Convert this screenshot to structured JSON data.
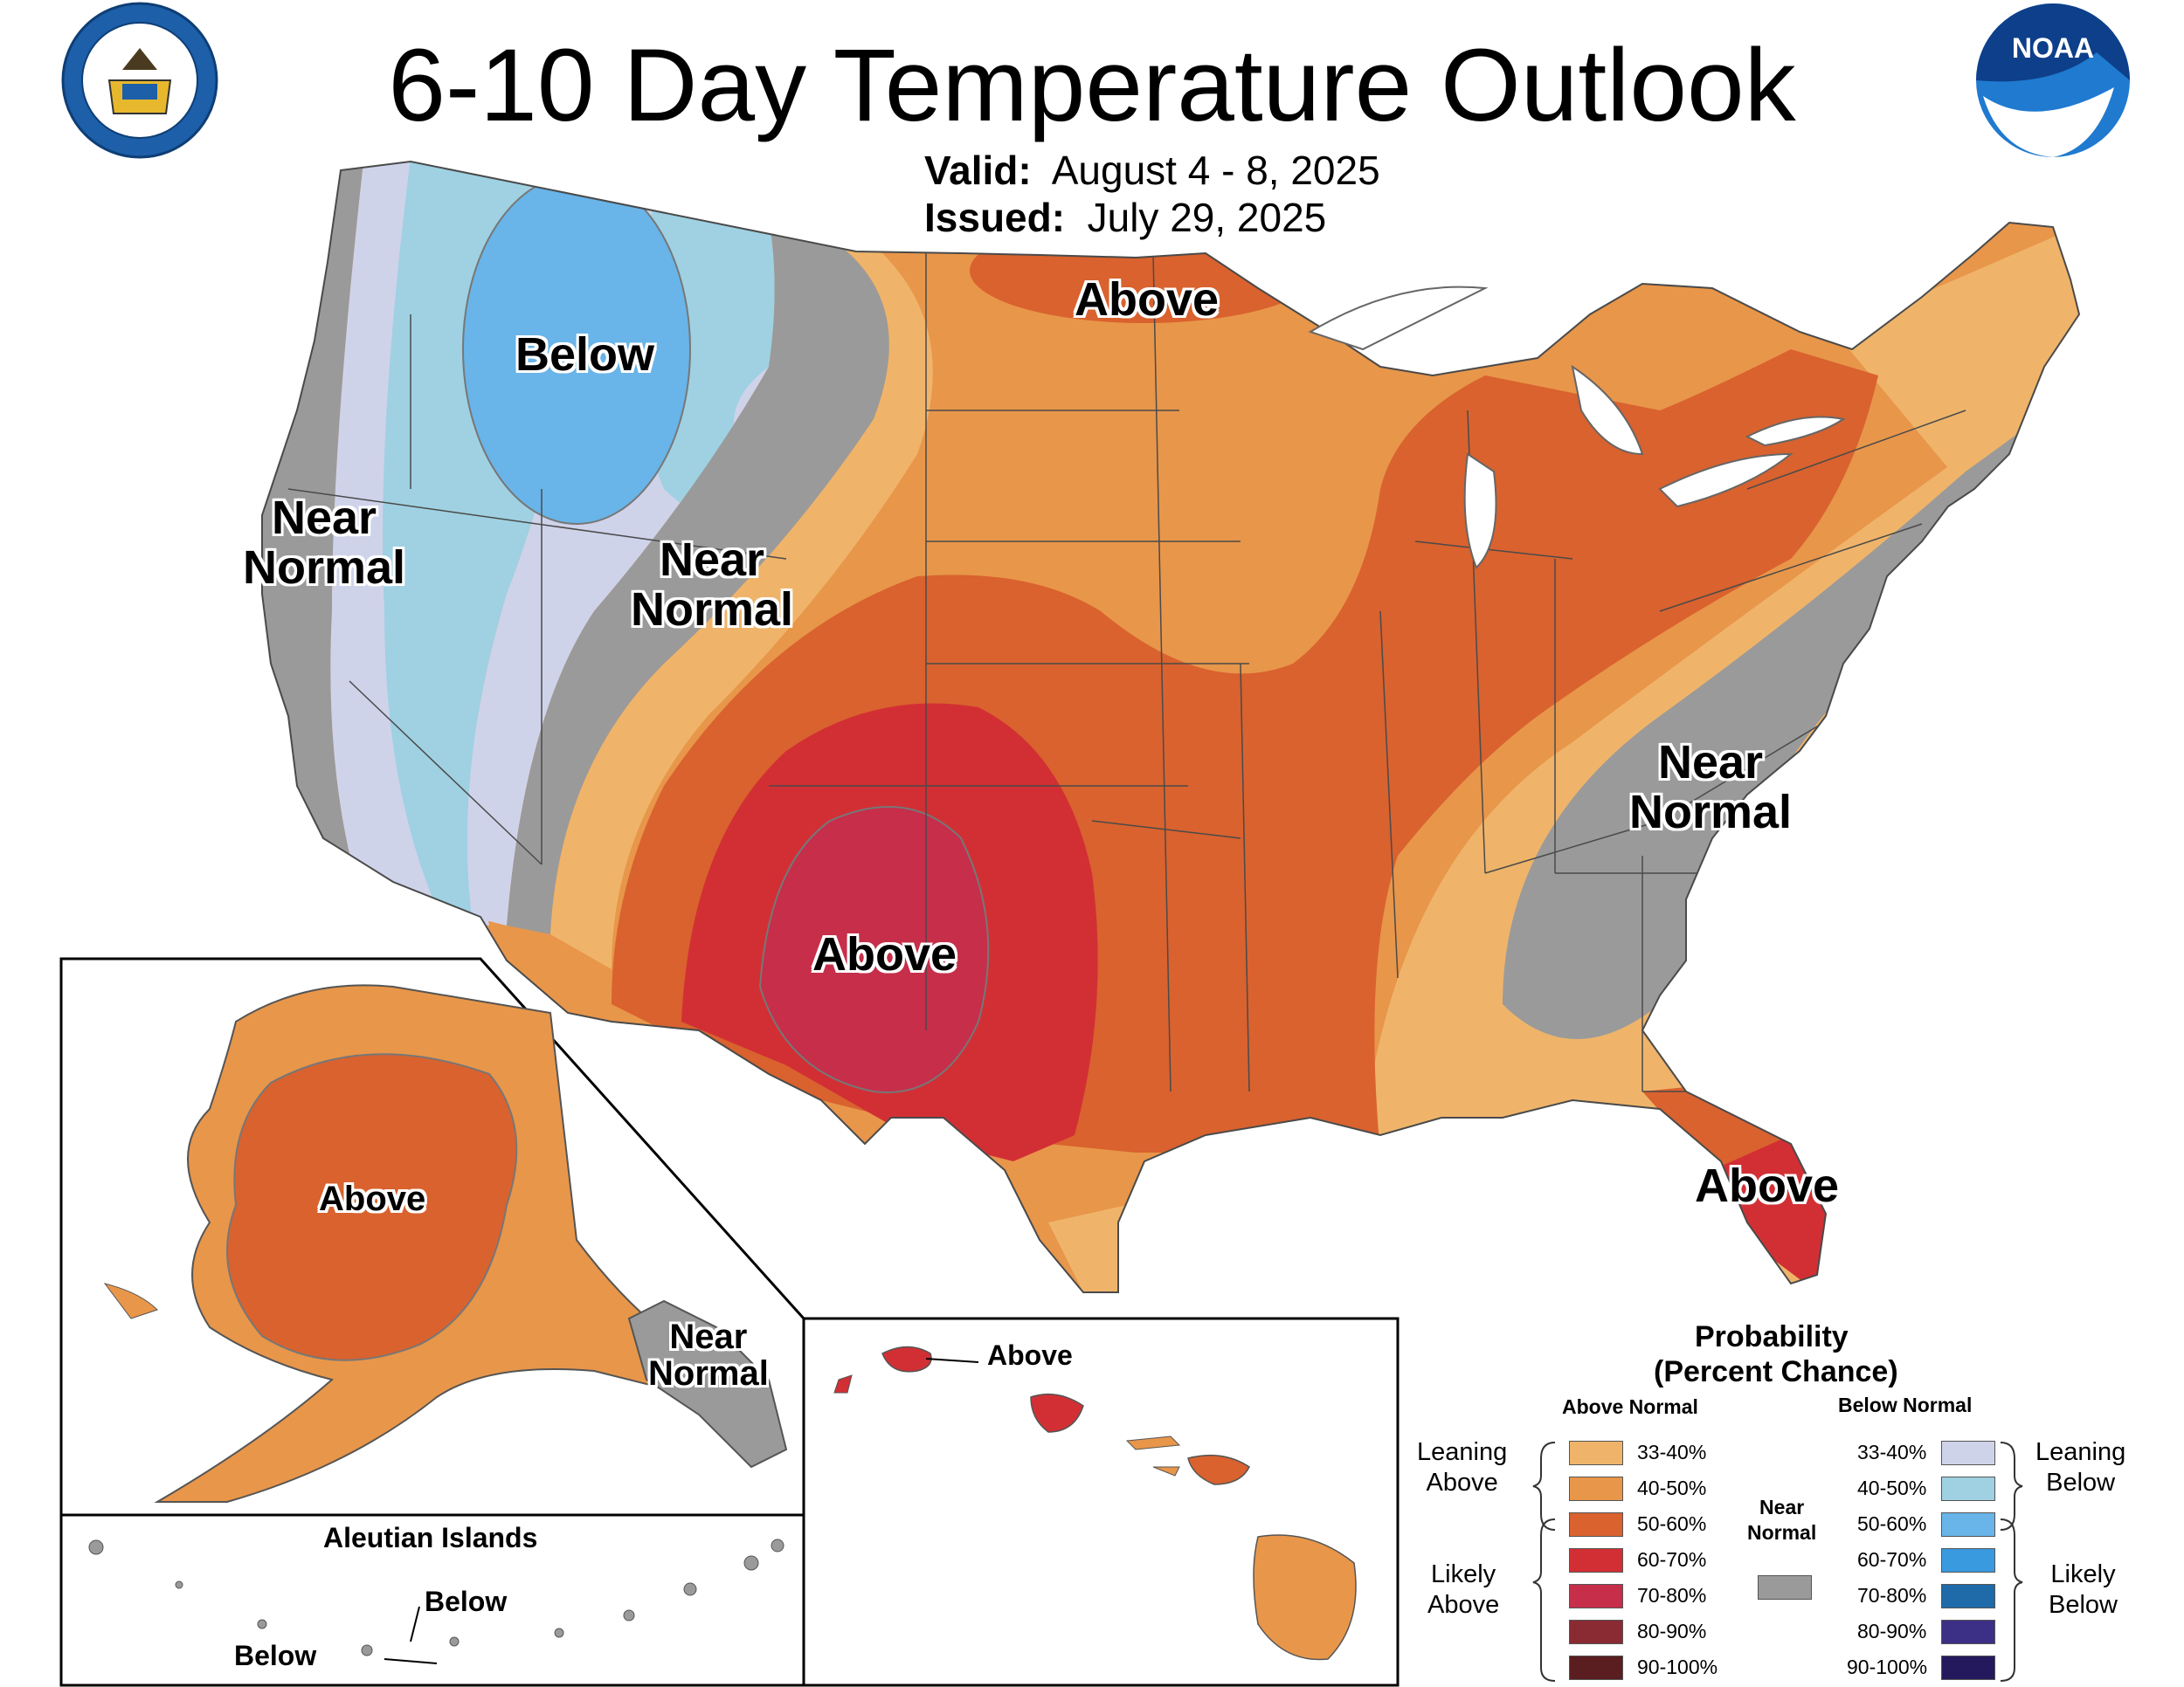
{
  "title": "6-10 Day Temperature Outlook",
  "valid": {
    "label": "Valid:",
    "value": "August 4 - 8, 2025"
  },
  "issued": {
    "label": "Issued:",
    "value": "July 29, 2025"
  },
  "logos": {
    "left": "department-of-commerce-seal",
    "right": "noaa-logo"
  },
  "map_labels": {
    "conus_above_north": "Above",
    "conus_below": "Below",
    "conus_near_normal_west_1": "Near",
    "conus_near_normal_west_2": "Normal",
    "conus_near_normal_mid_1": "Near",
    "conus_near_normal_mid_2": "Normal",
    "conus_above_southwest": "Above",
    "conus_near_normal_east_1": "Near",
    "conus_near_normal_east_2": "Normal",
    "conus_above_florida": "Above",
    "alaska_above": "Above",
    "alaska_near_normal_1": "Near",
    "alaska_near_normal_2": "Normal",
    "aleutian_title": "Aleutian Islands",
    "aleutian_below_1": "Below",
    "aleutian_below_2": "Below",
    "hawaii_above": "Above"
  },
  "legend": {
    "title_1": "Probability",
    "title_2": "(Percent Chance)",
    "above_header": "Above Normal",
    "below_header": "Below Normal",
    "near_header_1": "Near",
    "near_header_2": "Normal",
    "leaning_above_1": "Leaning",
    "leaning_above_2": "Above",
    "likely_above_1": "Likely",
    "likely_above_2": "Above",
    "leaning_below_1": "Leaning",
    "leaning_below_2": "Below",
    "likely_below_1": "Likely",
    "likely_below_2": "Below",
    "above": [
      {
        "range": "33-40%",
        "color": "#efb46a"
      },
      {
        "range": "40-50%",
        "color": "#e8964a"
      },
      {
        "range": "50-60%",
        "color": "#d9622e"
      },
      {
        "range": "60-70%",
        "color": "#d22f34"
      },
      {
        "range": "70-80%",
        "color": "#c62e4a"
      },
      {
        "range": "80-90%",
        "color": "#8a2a33"
      },
      {
        "range": "90-100%",
        "color": "#5a1d20"
      }
    ],
    "below": [
      {
        "range": "33-40%",
        "color": "#cfd3ea"
      },
      {
        "range": "40-50%",
        "color": "#9fd1e2"
      },
      {
        "range": "50-60%",
        "color": "#69b4e8"
      },
      {
        "range": "60-70%",
        "color": "#3a9ae0"
      },
      {
        "range": "70-80%",
        "color": "#1f6aa8"
      },
      {
        "range": "80-90%",
        "color": "#3b2f86"
      },
      {
        "range": "90-100%",
        "color": "#25195e"
      }
    ],
    "near_color": "#9a9a9a"
  }
}
